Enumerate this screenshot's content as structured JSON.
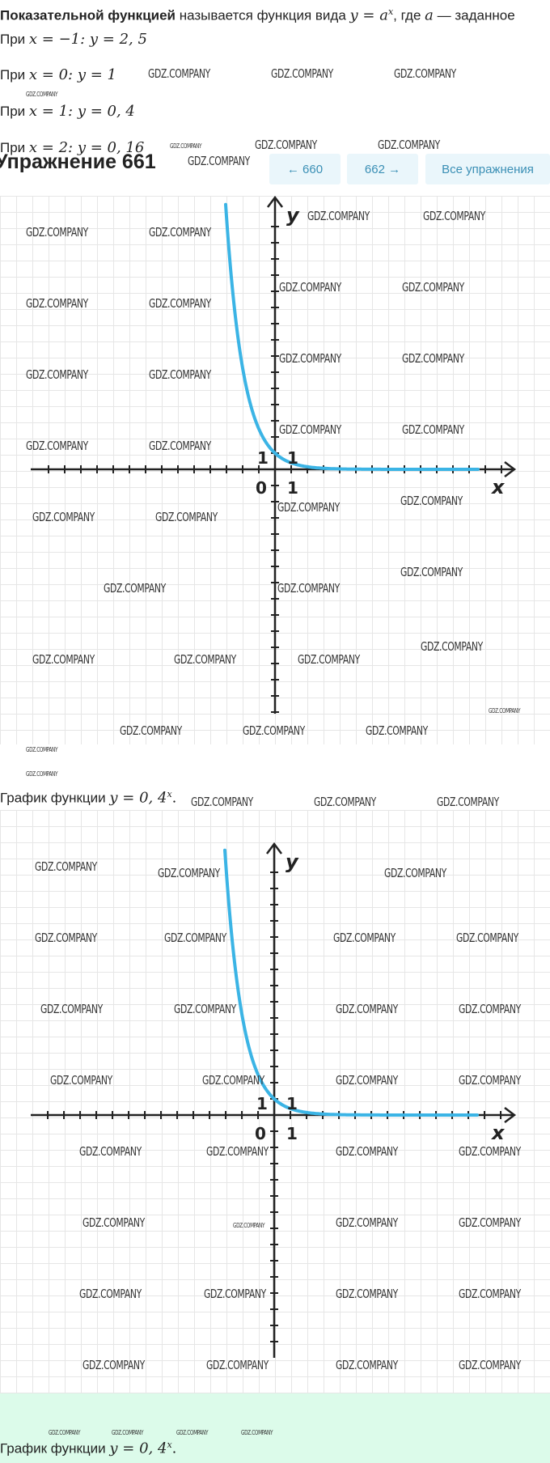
{
  "definition": {
    "bold": "Показательной функцией",
    "text": " называется функция вида ",
    "formula": "y = a",
    "exp": "x",
    "rest": ", где ",
    "var": "a",
    "tail": " — заданное"
  },
  "values": [
    {
      "prefix": "При ",
      "math": "x = −1: y = 2, 5"
    },
    {
      "prefix": "При ",
      "math": "x = 0: y = 1"
    },
    {
      "prefix": "При ",
      "math": "x = 1: y = 0, 4"
    },
    {
      "prefix": "При ",
      "math": "x = 2: y = 0, 16"
    }
  ],
  "exercise": {
    "title": "Упражнение 661",
    "prev": "← 660",
    "next": "662 →",
    "all": "Все упражнения"
  },
  "graph": {
    "function": "y = 0.4^x",
    "x_label": "x",
    "y_label": "y",
    "tick_one": "1",
    "origin": "0",
    "curve_color": "#3bb4e5"
  },
  "caption": {
    "prefix": "График функции ",
    "math": "y = 0, 4",
    "exp": "x",
    "dot": "."
  },
  "watermark": "GDZ.COMPANY",
  "colors": {
    "nav_bg": "#eaf6fb",
    "nav_text": "#3a8fb5",
    "footer_bg": "#dcfbea"
  }
}
